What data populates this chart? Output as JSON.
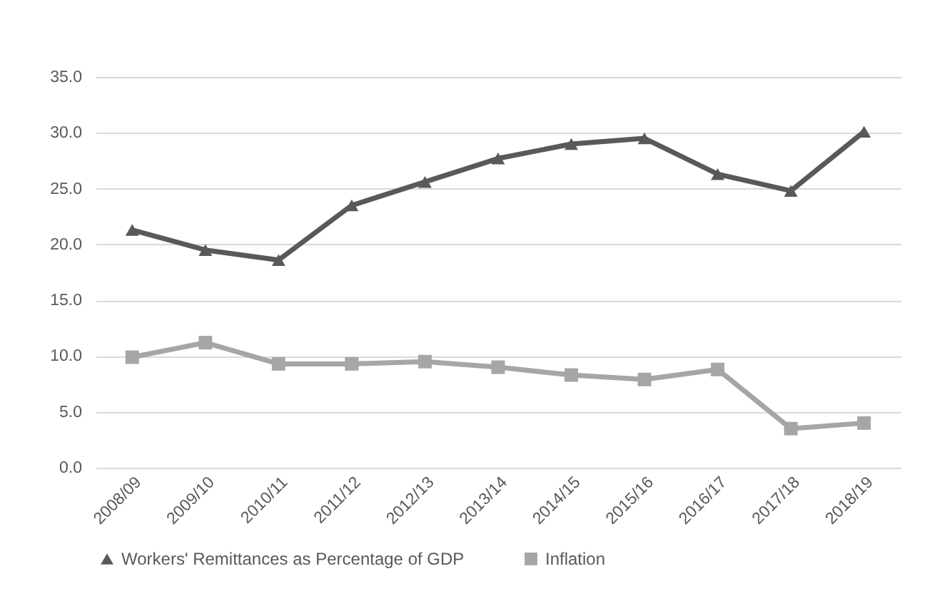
{
  "chart_data": {
    "type": "line",
    "categories": [
      "2008/09",
      "2009/10",
      "2010/11",
      "2011/12",
      "2012/13",
      "2013/14",
      "2014/15",
      "2015/16",
      "2016/17",
      "2017/18",
      "2018/19"
    ],
    "series": [
      {
        "name": "Workers' Remittances as Percentage of GDP",
        "color": "#595959",
        "marker": "triangle",
        "values": [
          21.3,
          19.5,
          18.6,
          23.5,
          25.6,
          27.7,
          29.0,
          29.5,
          26.3,
          24.8,
          30.1
        ]
      },
      {
        "name": "Inflation",
        "color": "#a6a6a6",
        "marker": "square",
        "values": [
          9.9,
          11.2,
          9.3,
          9.3,
          9.5,
          9.0,
          8.3,
          7.9,
          8.8,
          3.5,
          4.0
        ]
      }
    ],
    "ylim": [
      0,
      35
    ],
    "yticks": [
      {
        "value": 0,
        "label": "0.0"
      },
      {
        "value": 5,
        "label": "5.0"
      },
      {
        "value": 10,
        "label": "10.0"
      },
      {
        "value": 15,
        "label": "15.0"
      },
      {
        "value": 20,
        "label": "20.0"
      },
      {
        "value": 25,
        "label": "25.0"
      },
      {
        "value": 30,
        "label": "30.0"
      },
      {
        "value": 35,
        "label": "35.0"
      }
    ],
    "grid": "y",
    "legend": "bottom"
  }
}
